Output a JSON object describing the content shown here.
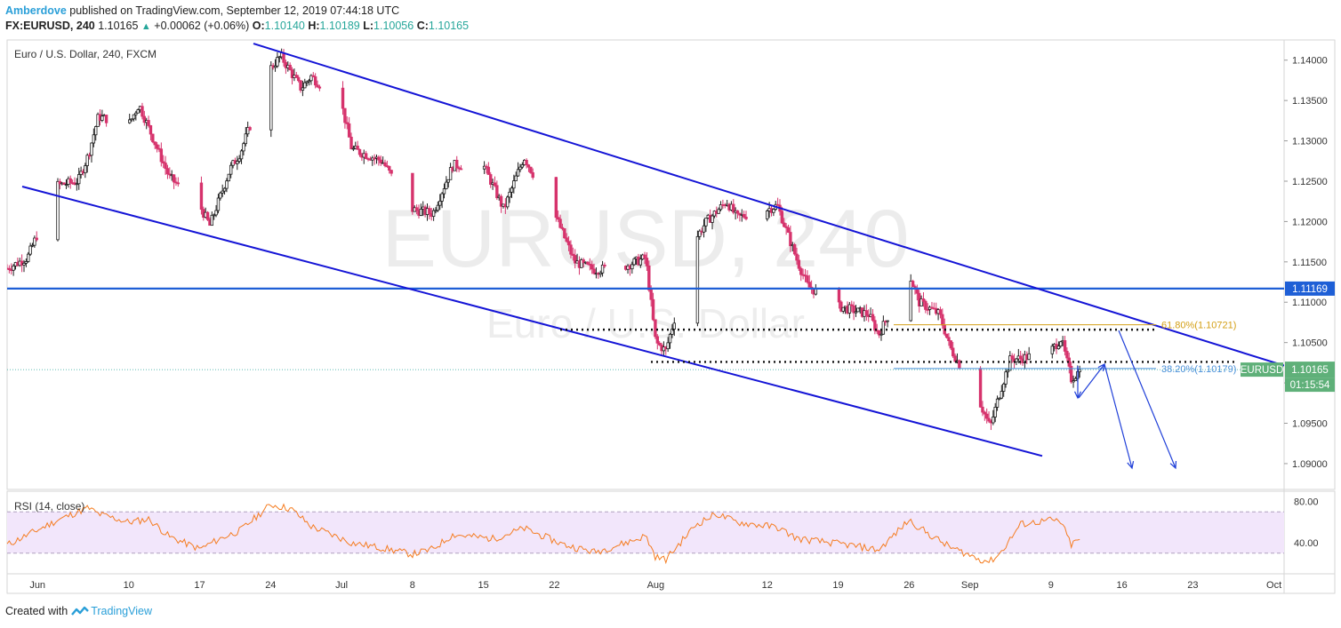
{
  "header": {
    "author": "Amberdove",
    "published_text": "published on TradingView.com, September 12, 2019 07:44:18 UTC",
    "symbol": "FX:EURUSD, 240",
    "last": "1.10165",
    "change": "+0.00062 (+0.06%)",
    "open_label": "O:",
    "open": "1.10140",
    "high_label": "H:",
    "high": "1.10189",
    "low_label": "L:",
    "low": "1.10056",
    "close_label": "C:",
    "close": "1.10165"
  },
  "main_pane_title": "Euro / U.S. Dollar, 240, FXCM",
  "watermark": {
    "line1": "EURUSD, 240",
    "line2": "Euro / U.S. Dollar"
  },
  "rsi_pane_title": "RSI (14, close)",
  "price_axis_labels": [
    "1.14000",
    "1.13500",
    "1.13000",
    "1.12500",
    "1.12000",
    "1.11500",
    "1.11000",
    "1.10500",
    "1.10000",
    "1.09500",
    "1.09000"
  ],
  "rsi_axis_labels": [
    "80.00",
    "40.00"
  ],
  "time_axis_labels": [
    "Jun",
    "10",
    "17",
    "24",
    "Jul",
    "8",
    "15",
    "22",
    "Aug",
    "12",
    "19",
    "26",
    "Sep",
    "9",
    "16",
    "23",
    "Oct"
  ],
  "badges": {
    "level": "1.11169",
    "symbol_label": "EURUSD",
    "price": "1.10165",
    "countdown": "01:15:54"
  },
  "fib_labels": {
    "fib618": "61.80%(1.10721)",
    "fib382": "38.20%(1.10179)"
  },
  "footer": {
    "created_with": "Created with",
    "brand": "TradingView"
  },
  "colors": {
    "up": "#26a69a",
    "down": "#ef5350",
    "bull_candle": "#1b1b1b",
    "bear_candle": "#d6336c",
    "trendline": "#1414d6",
    "level": "#1e5fd6",
    "rsi_line": "#f57c20",
    "rsi_band": "#f2e6fb",
    "fib618": "#d4a017",
    "fib382": "#4a90d9",
    "badge_price": "#5fb079",
    "badge_level": "#1e5fd6"
  },
  "chart_data": {
    "type": "candlestick",
    "symbol": "EURUSD",
    "timeframe": "240",
    "ylim": [
      1.0868,
      1.1425
    ],
    "yticks": [
      1.14,
      1.135,
      1.13,
      1.125,
      1.12,
      1.115,
      1.11,
      1.105,
      1.1,
      1.095,
      1.09
    ],
    "x_range": [
      "2019-05-29",
      "2019-10-02"
    ],
    "price_path": [
      [
        "2019-05-29",
        1.1142
      ],
      [
        "2019-05-31",
        1.1155
      ],
      [
        "2019-06-03",
        1.1245
      ],
      [
        "2019-06-05",
        1.125
      ],
      [
        "2019-06-06",
        1.1282
      ],
      [
        "2019-06-07",
        1.133
      ],
      [
        "2019-06-10",
        1.132
      ],
      [
        "2019-06-11",
        1.1345
      ],
      [
        "2019-06-13",
        1.1285
      ],
      [
        "2019-06-14",
        1.1255
      ],
      [
        "2019-06-17",
        1.122
      ],
      [
        "2019-06-18",
        1.1195
      ],
      [
        "2019-06-20",
        1.1265
      ],
      [
        "2019-06-21",
        1.1285
      ],
      [
        "2019-06-24",
        1.139
      ],
      [
        "2019-06-25",
        1.1405
      ],
      [
        "2019-06-27",
        1.1365
      ],
      [
        "2019-06-28",
        1.138
      ],
      [
        "2019-07-01",
        1.1345
      ],
      [
        "2019-07-02",
        1.129
      ],
      [
        "2019-07-05",
        1.1275
      ],
      [
        "2019-07-08",
        1.1215
      ],
      [
        "2019-07-10",
        1.121
      ],
      [
        "2019-07-12",
        1.127
      ],
      [
        "2019-07-15",
        1.127
      ],
      [
        "2019-07-17",
        1.1215
      ],
      [
        "2019-07-19",
        1.128
      ],
      [
        "2019-07-22",
        1.121
      ],
      [
        "2019-07-24",
        1.115
      ],
      [
        "2019-07-26",
        1.114
      ],
      [
        "2019-07-29",
        1.1145
      ],
      [
        "2019-07-31",
        1.1155
      ],
      [
        "2019-08-01",
        1.105
      ],
      [
        "2019-08-02",
        1.104
      ],
      [
        "2019-08-05",
        1.118
      ],
      [
        "2019-08-06",
        1.12
      ],
      [
        "2019-08-08",
        1.1225
      ],
      [
        "2019-08-09",
        1.1205
      ],
      [
        "2019-08-12",
        1.1215
      ],
      [
        "2019-08-13",
        1.122
      ],
      [
        "2019-08-15",
        1.115
      ],
      [
        "2019-08-16",
        1.112
      ],
      [
        "2019-08-19",
        1.1095
      ],
      [
        "2019-08-22",
        1.1085
      ],
      [
        "2019-08-23",
        1.106
      ],
      [
        "2019-08-26",
        1.1135
      ],
      [
        "2019-08-27",
        1.11
      ],
      [
        "2019-08-29",
        1.1085
      ],
      [
        "2019-08-30",
        1.1045
      ],
      [
        "2019-09-02",
        1.0975
      ],
      [
        "2019-09-03",
        1.0945
      ],
      [
        "2019-09-04",
        1.099
      ],
      [
        "2019-09-05",
        1.103
      ],
      [
        "2019-09-06",
        1.103
      ],
      [
        "2019-09-09",
        1.104
      ],
      [
        "2019-09-10",
        1.1055
      ],
      [
        "2019-09-11",
        1.1005
      ],
      [
        "2019-09-12",
        1.1017
      ]
    ],
    "last_price": 1.10165,
    "horizontal_level": 1.11169,
    "fib_618": 1.10721,
    "fib_382": 1.10179,
    "channel_upper": [
      [
        "2019-06-25",
        1.141
      ],
      [
        "2019-09-26",
        1.1045
      ]
    ],
    "channel_lower": [
      [
        "2019-05-30",
        1.1245
      ],
      [
        "2019-09-11",
        1.09
      ]
    ],
    "rsi": {
      "ylim": [
        10,
        90
      ],
      "yticks": [
        80,
        40
      ],
      "band": [
        30,
        70
      ],
      "values": [
        [
          "2019-05-29",
          38
        ],
        [
          "2019-06-03",
          62
        ],
        [
          "2019-06-06",
          74
        ],
        [
          "2019-06-07",
          68
        ],
        [
          "2019-06-10",
          60
        ],
        [
          "2019-06-12",
          63
        ],
        [
          "2019-06-14",
          46
        ],
        [
          "2019-06-17",
          34
        ],
        [
          "2019-06-19",
          44
        ],
        [
          "2019-06-21",
          52
        ],
        [
          "2019-06-24",
          77
        ],
        [
          "2019-06-26",
          73
        ],
        [
          "2019-06-28",
          56
        ],
        [
          "2019-07-02",
          40
        ],
        [
          "2019-07-05",
          35
        ],
        [
          "2019-07-08",
          29
        ],
        [
          "2019-07-10",
          34
        ],
        [
          "2019-07-12",
          48
        ],
        [
          "2019-07-16",
          44
        ],
        [
          "2019-07-19",
          54
        ],
        [
          "2019-07-23",
          38
        ],
        [
          "2019-07-26",
          31
        ],
        [
          "2019-07-30",
          43
        ],
        [
          "2019-07-31",
          47
        ],
        [
          "2019-08-01",
          26
        ],
        [
          "2019-08-02",
          24
        ],
        [
          "2019-08-05",
          58
        ],
        [
          "2019-08-07",
          68
        ],
        [
          "2019-08-09",
          60
        ],
        [
          "2019-08-13",
          55
        ],
        [
          "2019-08-15",
          44
        ],
        [
          "2019-08-20",
          38
        ],
        [
          "2019-08-23",
          33
        ],
        [
          "2019-08-26",
          62
        ],
        [
          "2019-08-28",
          48
        ],
        [
          "2019-08-30",
          36
        ],
        [
          "2019-09-02",
          24
        ],
        [
          "2019-09-03",
          22
        ],
        [
          "2019-09-04",
          30
        ],
        [
          "2019-09-06",
          58
        ],
        [
          "2019-09-09",
          62
        ],
        [
          "2019-09-10",
          60
        ],
        [
          "2019-09-11",
          38
        ],
        [
          "2019-09-12",
          45
        ]
      ]
    }
  }
}
